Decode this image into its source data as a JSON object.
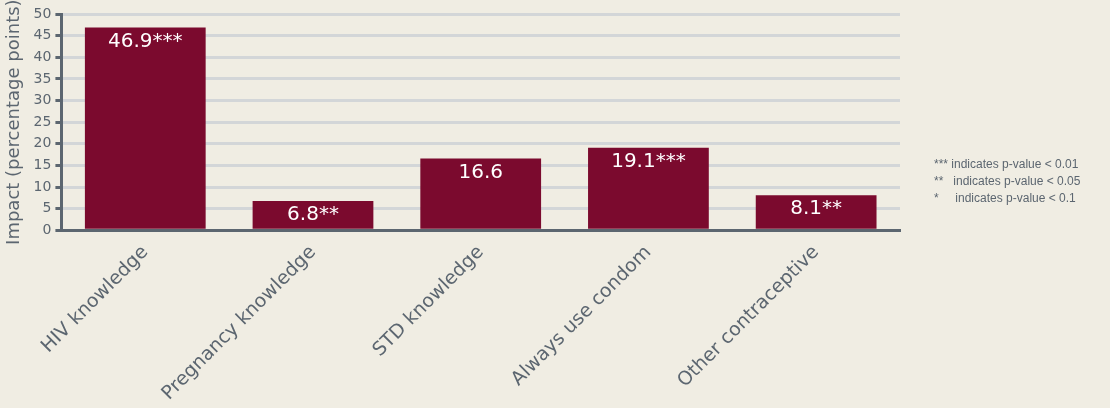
{
  "chart_data": {
    "type": "bar",
    "ylabel": "Impact (percentage points)",
    "categories": [
      "HIV knowledge",
      "Pregnancy knowledge",
      "STD knowledge",
      "Always use condom",
      "Other contraceptive"
    ],
    "values": [
      46.9,
      6.8,
      16.6,
      19.1,
      8.1
    ],
    "value_labels": [
      "46.9***",
      "6.8**",
      "16.6",
      "19.1***",
      "8.1**"
    ],
    "color": "#7b0a2e",
    "ylim": [
      0,
      50
    ],
    "yticks": [
      0,
      5,
      10,
      15,
      20,
      25,
      30,
      35,
      40,
      45,
      50
    ],
    "grid": "y",
    "legend": false,
    "annotations": [
      "*** indicates p-value < 0.01",
      "**   indicates p-value < 0.05",
      "*     indicates p-value < 0.1"
    ]
  }
}
